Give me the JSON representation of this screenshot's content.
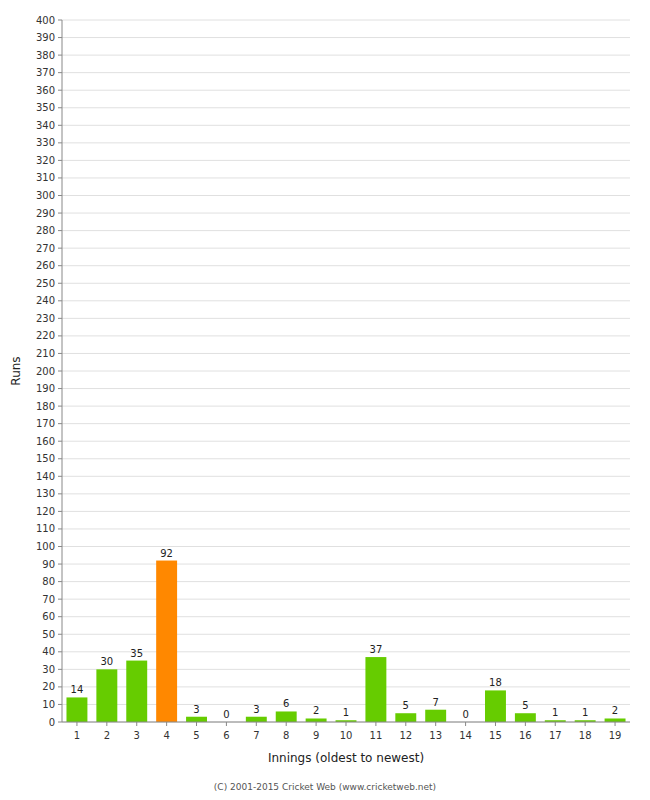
{
  "chart_data": {
    "type": "bar",
    "xlabel": "Innings (oldest to newest)",
    "ylabel": "Runs",
    "categories": [
      1,
      2,
      3,
      4,
      5,
      6,
      7,
      8,
      9,
      10,
      11,
      12,
      13,
      14,
      15,
      16,
      17,
      18,
      19
    ],
    "values": [
      14,
      30,
      35,
      92,
      3,
      0,
      3,
      6,
      2,
      1,
      37,
      5,
      7,
      0,
      18,
      5,
      1,
      1,
      2
    ],
    "colors": [
      "#66cc00",
      "#66cc00",
      "#66cc00",
      "#ff8800",
      "#66cc00",
      "#66cc00",
      "#66cc00",
      "#66cc00",
      "#66cc00",
      "#66cc00",
      "#66cc00",
      "#66cc00",
      "#66cc00",
      "#66cc00",
      "#66cc00",
      "#66cc00",
      "#66cc00",
      "#66cc00",
      "#66cc00"
    ],
    "ylim": [
      0,
      400
    ],
    "yticks": [
      0,
      10,
      20,
      30,
      40,
      50,
      60,
      70,
      80,
      90,
      100,
      110,
      120,
      130,
      140,
      150,
      160,
      170,
      180,
      190,
      200,
      210,
      220,
      230,
      240,
      250,
      260,
      270,
      280,
      290,
      300,
      310,
      320,
      330,
      340,
      350,
      360,
      370,
      380,
      390,
      400
    ],
    "grid": true,
    "data_labels": true,
    "annotations": [
      "(C) 2001-2015 Cricket Web (www.cricketweb.net)"
    ]
  }
}
